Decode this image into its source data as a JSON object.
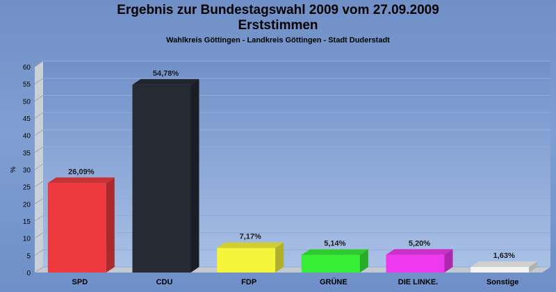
{
  "header": {
    "title_line1": "Ergebnis zur Bundestagswahl 2009 vom 27.09.2009",
    "title_line2": "Erststimmen",
    "subtitle": "Wahlkreis Göttingen - Landkreis Göttingen - Stadt Duderstadt"
  },
  "chart_data": {
    "type": "bar",
    "title": "Ergebnis zur Bundestagswahl 2009 vom 27.09.2009 Erststimmen",
    "subtitle": "Wahlkreis Göttingen - Landkreis Göttingen - Stadt Duderstadt",
    "xlabel": "",
    "ylabel": "%",
    "ylim": [
      0,
      60
    ],
    "yticks": [
      0,
      5,
      10,
      15,
      20,
      25,
      30,
      35,
      40,
      45,
      50,
      55,
      60
    ],
    "grid": true,
    "legend": "none",
    "categories": [
      "SPD",
      "CDU",
      "FDP",
      "GRÜNE",
      "DIE LINKE.",
      "Sonstige"
    ],
    "values": [
      26.09,
      54.78,
      7.17,
      5.14,
      5.2,
      1.63
    ],
    "data_labels": [
      "26,09%",
      "54,78%",
      "7,17%",
      "5,14%",
      "5,20%",
      "1,63%"
    ],
    "colors": [
      "#ee3a3f",
      "#262a33",
      "#f4f43a",
      "#36ef36",
      "#ef39ef",
      "#f4f4f4"
    ]
  }
}
